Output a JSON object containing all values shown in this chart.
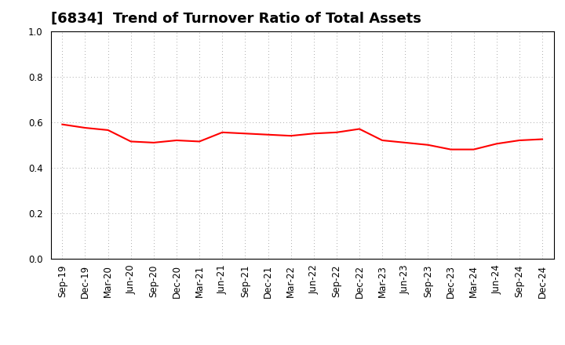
{
  "title": "[6834]  Trend of Turnover Ratio of Total Assets",
  "x_labels": [
    "Sep-19",
    "Dec-19",
    "Mar-20",
    "Jun-20",
    "Sep-20",
    "Dec-20",
    "Mar-21",
    "Jun-21",
    "Sep-21",
    "Dec-21",
    "Mar-22",
    "Jun-22",
    "Sep-22",
    "Dec-22",
    "Mar-23",
    "Jun-23",
    "Sep-23",
    "Dec-23",
    "Mar-24",
    "Jun-24",
    "Sep-24",
    "Dec-24"
  ],
  "y_values": [
    0.59,
    0.575,
    0.565,
    0.515,
    0.51,
    0.52,
    0.515,
    0.555,
    0.55,
    0.545,
    0.54,
    0.55,
    0.555,
    0.57,
    0.52,
    0.51,
    0.5,
    0.48,
    0.48,
    0.505,
    0.52,
    0.525
  ],
  "line_color": "#FF0000",
  "line_width": 1.5,
  "ylim": [
    0.0,
    1.0
  ],
  "yticks": [
    0.0,
    0.2,
    0.4,
    0.6,
    0.8,
    1.0
  ],
  "background_color": "#FFFFFF",
  "plot_bg_color": "#FFFFFF",
  "grid_color": "#AAAAAA",
  "title_fontsize": 13,
  "tick_fontsize": 8.5,
  "title_color": "#000000"
}
